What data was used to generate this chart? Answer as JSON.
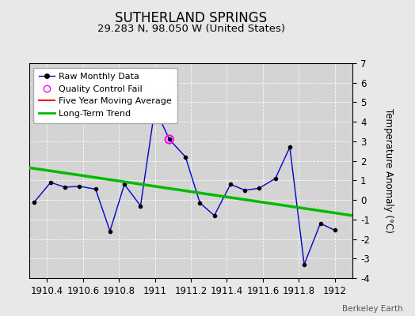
{
  "title": "SUTHERLAND SPRINGS",
  "subtitle": "29.283 N, 98.050 W (United States)",
  "credit": "Berkeley Earth",
  "raw_x": [
    1910.33,
    1910.42,
    1910.5,
    1910.58,
    1910.67,
    1910.75,
    1910.83,
    1910.92,
    1911.0,
    1911.08,
    1911.17,
    1911.25,
    1911.33,
    1911.42,
    1911.5,
    1911.58,
    1911.67,
    1911.75,
    1911.83,
    1911.92,
    1912.0
  ],
  "raw_y": [
    -0.1,
    0.9,
    0.65,
    0.7,
    0.55,
    -1.6,
    0.8,
    -0.3,
    4.7,
    3.1,
    2.2,
    -0.15,
    -0.8,
    0.8,
    0.5,
    0.6,
    1.1,
    2.7,
    -3.3,
    -1.2,
    -1.55
  ],
  "qc_fail_x": [
    1911.08
  ],
  "qc_fail_y": [
    3.1
  ],
  "trend_x": [
    1910.3,
    1912.1
  ],
  "trend_y": [
    1.65,
    -0.8
  ],
  "ylim": [
    -4,
    7
  ],
  "xlim": [
    1910.3,
    1912.1
  ],
  "xticks": [
    1910.4,
    1910.6,
    1910.8,
    1911.0,
    1911.2,
    1911.4,
    1911.6,
    1911.8,
    1912.0
  ],
  "xtick_labels": [
    "1910.4",
    "1910.6",
    "1910.8",
    "1911",
    "1911.2",
    "1911.4",
    "1911.6",
    "1911.8",
    "1912"
  ],
  "yticks": [
    -4,
    -3,
    -2,
    -1,
    0,
    1,
    2,
    3,
    4,
    5,
    6,
    7
  ],
  "ytick_labels": [
    "-4",
    "-3",
    "-2",
    "-1",
    "0",
    "1",
    "2",
    "3",
    "4",
    "5",
    "6",
    "7"
  ],
  "background_color": "#e8e8e8",
  "plot_bg_color": "#d4d4d4",
  "raw_line_color": "#0000cc",
  "raw_marker_color": "#000000",
  "qc_marker_color": "magenta",
  "trend_color": "#00bb00",
  "moving_avg_color": "red",
  "ylabel": "Temperature Anomaly (°C)",
  "title_fontsize": 12,
  "subtitle_fontsize": 9.5,
  "tick_fontsize": 8.5,
  "legend_fontsize": 8,
  "credit_fontsize": 7.5
}
